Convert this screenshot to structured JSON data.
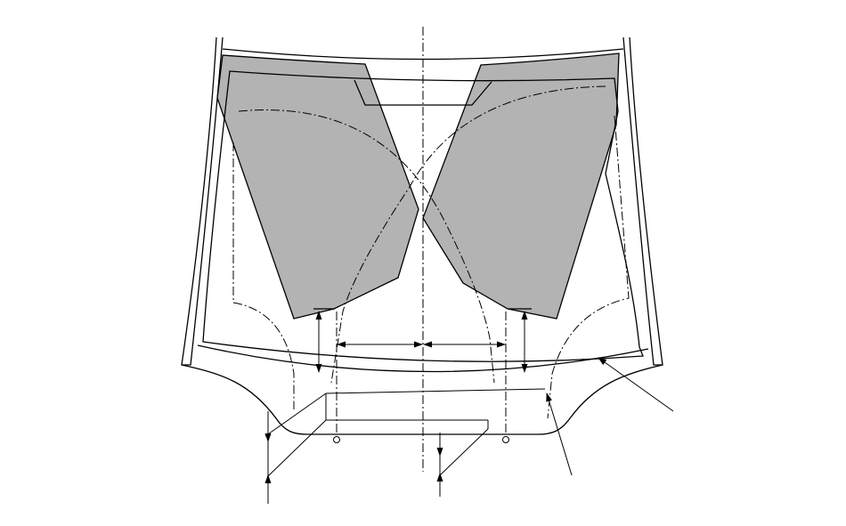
{
  "figure": {
    "shade_color": "#b3b3b3",
    "line_color": "#000000",
    "background": "#ffffff"
  }
}
